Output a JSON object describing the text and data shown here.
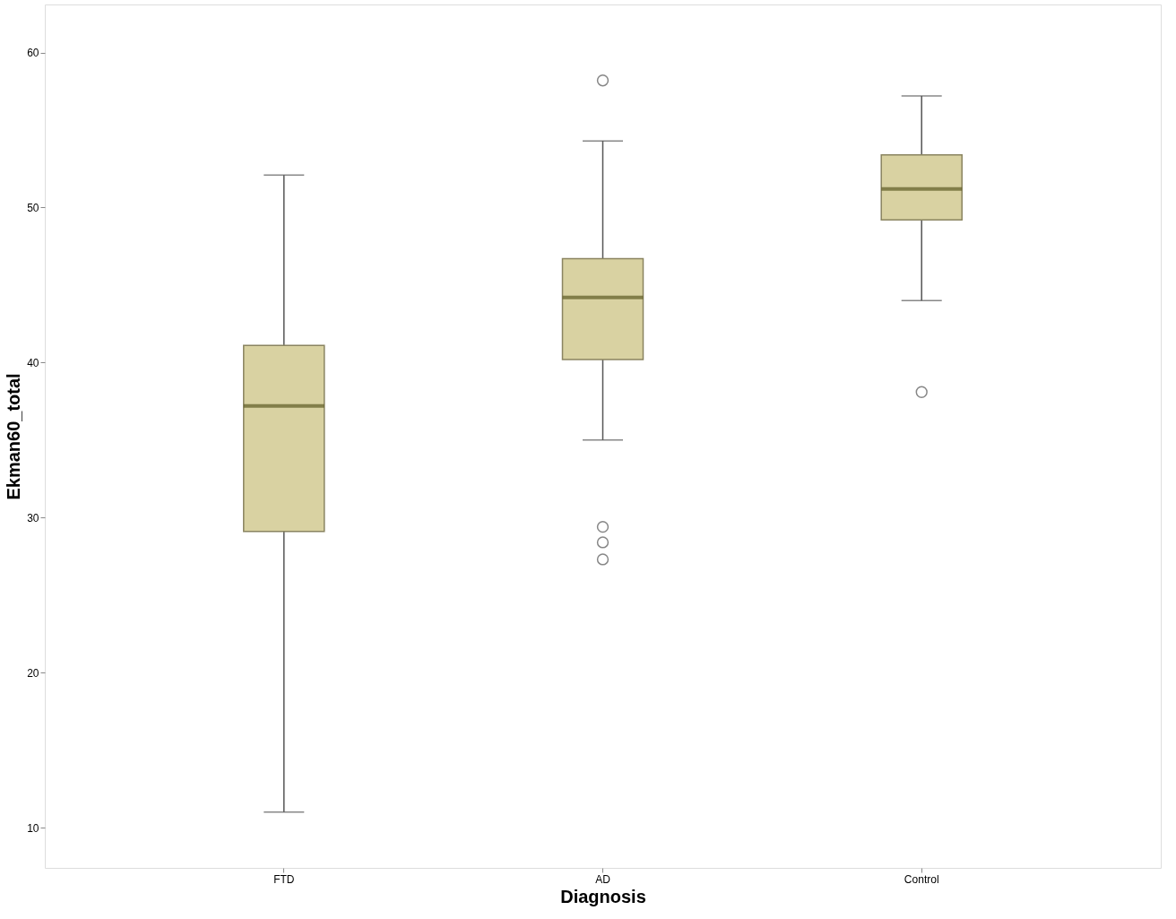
{
  "chart_data": {
    "type": "box",
    "xlabel": "Diagnosis",
    "ylabel": "Ekman60_total",
    "categories": [
      "FTD",
      "AD",
      "Control"
    ],
    "color": "#d9d2a2",
    "boxes": [
      {
        "low": 11.0,
        "q1": 29.1,
        "median": 37.2,
        "q3": 41.1,
        "high": 52.1
      },
      {
        "low": 35.0,
        "q1": 40.2,
        "median": 44.2,
        "q3": 46.7,
        "high": 54.3,
        "outliers": [
          58.2,
          29.4,
          28.4,
          27.3
        ]
      },
      {
        "low": 44.0,
        "q1": 49.2,
        "median": 51.2,
        "q3": 53.4,
        "high": 57.2,
        "outliers": [
          38.1
        ]
      }
    ],
    "ylim": [
      7.4,
      63.1
    ],
    "yticks": [
      10,
      20,
      30,
      40,
      50,
      60
    ],
    "grid": false
  }
}
